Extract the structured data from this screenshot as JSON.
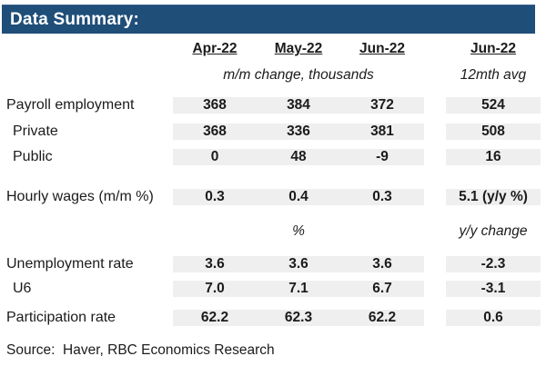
{
  "title": "Data Summary:",
  "colors": {
    "accent_navy": "#1F4E79",
    "cell_gray": "#EFEFEF",
    "text": "#1B1B1B"
  },
  "columns": {
    "c1": "Apr-22",
    "c2": "May-22",
    "c3": "Jun-22",
    "c4": "Jun-22"
  },
  "subheaders": {
    "block1_left": "m/m change, thousands",
    "block1_right": "12mth avg",
    "block2_left": "%",
    "block2_right": "y/y change"
  },
  "rows": {
    "payroll": {
      "label": "Payroll employment",
      "v1": "368",
      "v2": "384",
      "v3": "372",
      "v4": "524"
    },
    "private": {
      "label": "Private",
      "v1": "368",
      "v2": "336",
      "v3": "381",
      "v4": "508"
    },
    "public": {
      "label": "Public",
      "v1": "0",
      "v2": "48",
      "v3": "-9",
      "v4": "16"
    },
    "hourly_wages": {
      "label": "Hourly wages (m/m %)",
      "v1": "0.3",
      "v2": "0.4",
      "v3": "0.3",
      "v4": "5.1 (y/y %)"
    },
    "unemployment": {
      "label": "Unemployment rate",
      "v1": "3.6",
      "v2": "3.6",
      "v3": "3.6",
      "v4": "-2.3"
    },
    "u6": {
      "label": "U6",
      "v1": "7.0",
      "v2": "7.1",
      "v3": "6.7",
      "v4": "-3.1"
    },
    "participation": {
      "label": "Participation rate",
      "v1": "62.2",
      "v2": "62.3",
      "v3": "62.2",
      "v4": "0.6"
    }
  },
  "source": "Source:  Haver, RBC Economics Research"
}
